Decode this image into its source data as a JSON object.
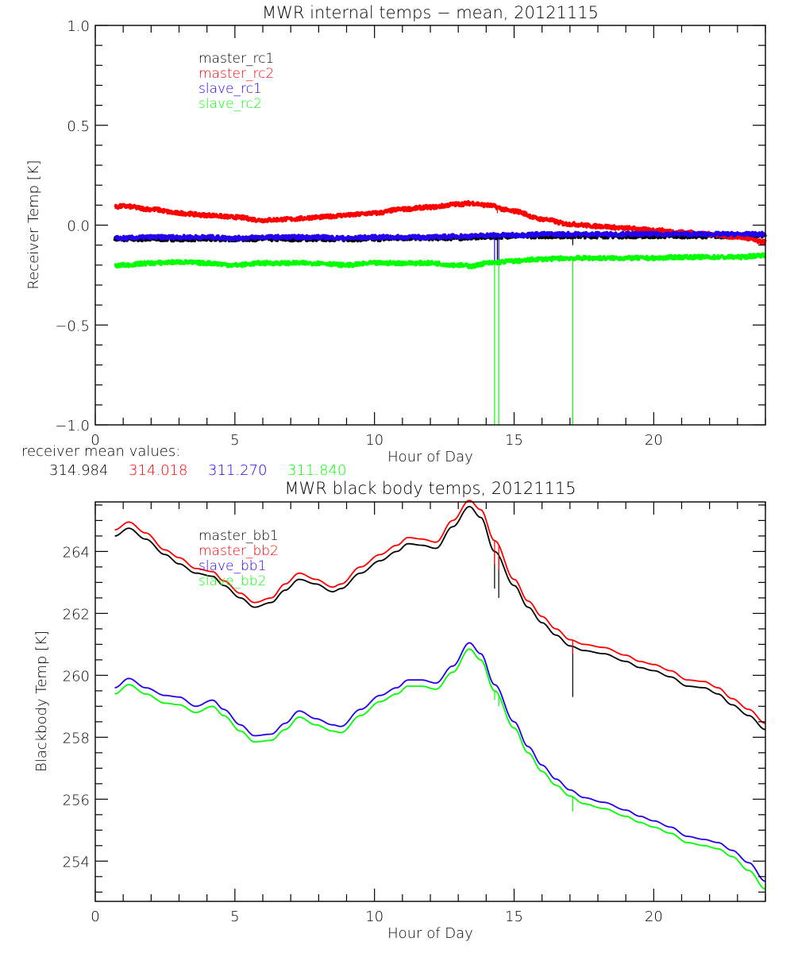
{
  "colors": {
    "black": "#000000",
    "red": "#ff0000",
    "blue": "#2200ee",
    "green": "#00ff00"
  },
  "receiver_mean": {
    "label": "receiver mean values:",
    "values": [
      {
        "text": "314.984",
        "color": "#000000"
      },
      {
        "text": "314.018",
        "color": "#ff0000"
      },
      {
        "text": "311.270",
        "color": "#2200ee"
      },
      {
        "text": "311.840",
        "color": "#00ff00"
      }
    ]
  },
  "chart_data": [
    {
      "type": "line",
      "title": "MWR internal temps − mean, 20121115",
      "xlabel": "Hour of Day",
      "ylabel": "Receiver Temp [K]",
      "xlim": [
        0,
        24
      ],
      "ylim": [
        -1.0,
        1.0
      ],
      "xticks": [
        0,
        5,
        10,
        15,
        20
      ],
      "xtick_labels": [
        "0",
        "5",
        "10",
        "15",
        "20"
      ],
      "yticks": [
        1.0,
        0.5,
        0.0,
        -0.5,
        -1.0
      ],
      "ytick_labels": [
        "1.0",
        "0.5",
        "0.0",
        "−0.5",
        "−1.0"
      ],
      "grid": false,
      "legend_position": "top-left",
      "x": [
        0.7,
        1,
        2,
        3,
        4,
        5,
        6,
        7,
        8,
        9,
        10,
        11,
        12,
        13,
        13.5,
        14,
        15,
        16,
        17,
        18,
        19,
        20,
        21,
        22,
        23,
        24
      ],
      "series": [
        {
          "name": "master_rc1",
          "color": "#000000",
          "values": [
            -0.07,
            -0.07,
            -0.07,
            -0.07,
            -0.07,
            -0.07,
            -0.07,
            -0.07,
            -0.07,
            -0.07,
            -0.07,
            -0.065,
            -0.065,
            -0.065,
            -0.06,
            -0.06,
            -0.055,
            -0.055,
            -0.055,
            -0.055,
            -0.055,
            -0.055,
            -0.055,
            -0.055,
            -0.055,
            -0.05
          ],
          "spikes": [
            {
              "x": 14.4,
              "to": -0.2
            },
            {
              "x": 17.1,
              "to": -0.1
            }
          ]
        },
        {
          "name": "master_rc2",
          "color": "#ff0000",
          "values": [
            0.09,
            0.095,
            0.08,
            0.06,
            0.05,
            0.04,
            0.025,
            0.03,
            0.04,
            0.05,
            0.06,
            0.08,
            0.09,
            0.105,
            0.11,
            0.1,
            0.07,
            0.03,
            0.005,
            -0.005,
            -0.015,
            -0.025,
            -0.035,
            -0.045,
            -0.06,
            -0.085
          ],
          "spikes": [
            {
              "x": 14.4,
              "to": 0.06
            }
          ]
        },
        {
          "name": "slave_rc1",
          "color": "#2200ee",
          "values": [
            -0.065,
            -0.065,
            -0.06,
            -0.06,
            -0.06,
            -0.065,
            -0.06,
            -0.06,
            -0.06,
            -0.065,
            -0.06,
            -0.06,
            -0.06,
            -0.055,
            -0.055,
            -0.05,
            -0.05,
            -0.045,
            -0.045,
            -0.045,
            -0.045,
            -0.045,
            -0.045,
            -0.045,
            -0.045,
            -0.045
          ],
          "spikes": [
            {
              "x": 14.3,
              "to": -0.2
            },
            {
              "x": 14.45,
              "to": -0.2
            }
          ]
        },
        {
          "name": "slave_rc2",
          "color": "#00ff00",
          "values": [
            -0.205,
            -0.2,
            -0.19,
            -0.185,
            -0.19,
            -0.2,
            -0.19,
            -0.19,
            -0.19,
            -0.2,
            -0.19,
            -0.19,
            -0.19,
            -0.2,
            -0.205,
            -0.19,
            -0.18,
            -0.17,
            -0.165,
            -0.165,
            -0.165,
            -0.165,
            -0.16,
            -0.16,
            -0.16,
            -0.15
          ],
          "spikes": [
            {
              "x": 14.3,
              "to": -1.0
            },
            {
              "x": 14.45,
              "to": -1.0
            },
            {
              "x": 17.1,
              "to": -1.0
            }
          ]
        }
      ]
    },
    {
      "type": "line",
      "title": "MWR black body temps, 20121115",
      "xlabel": "Hour of Day",
      "ylabel": "Blackbody Temp [K]",
      "xlim": [
        0,
        24
      ],
      "ylim": [
        252.7,
        265.6
      ],
      "xticks": [
        0,
        5,
        10,
        15,
        20
      ],
      "xtick_labels": [
        "0",
        "5",
        "10",
        "15",
        "20"
      ],
      "yticks": [
        264,
        262,
        260,
        258,
        256,
        254
      ],
      "ytick_labels": [
        "264",
        "262",
        "260",
        "258",
        "256",
        "254"
      ],
      "grid": false,
      "legend_position": "top-left",
      "x": [
        0.7,
        1.2,
        1.8,
        2.5,
        3.0,
        3.6,
        4.2,
        4.6,
        5.2,
        5.7,
        6.3,
        6.8,
        7.3,
        7.9,
        8.5,
        8.8,
        9.5,
        10.2,
        10.8,
        11.2,
        11.7,
        12.2,
        12.8,
        13.4,
        13.8,
        14.3,
        15.0,
        15.5,
        16.0,
        16.5,
        17.0,
        17.5,
        18.2,
        19.0,
        19.5,
        20.0,
        20.6,
        21.2,
        21.8,
        22.3,
        22.8,
        23.4,
        24.0
      ],
      "series": [
        {
          "name": "master_bb1",
          "color": "#000000",
          "values": [
            264.5,
            264.75,
            264.4,
            263.9,
            263.6,
            263.3,
            263.2,
            262.9,
            262.5,
            262.2,
            262.35,
            262.75,
            263.1,
            262.95,
            262.7,
            262.8,
            263.3,
            263.7,
            264.0,
            264.25,
            264.2,
            264.1,
            264.8,
            265.45,
            265.1,
            264.0,
            262.9,
            262.2,
            261.7,
            261.3,
            260.95,
            260.8,
            260.7,
            260.45,
            260.25,
            260.15,
            259.95,
            259.65,
            259.6,
            259.4,
            259.05,
            258.7,
            258.25
          ],
          "spikes": [
            {
              "x": 14.3,
              "to": 262.8
            },
            {
              "x": 14.45,
              "to": 262.5
            },
            {
              "x": 17.1,
              "to": 259.3
            }
          ]
        },
        {
          "name": "master_bb2",
          "color": "#ff0000",
          "values": [
            264.7,
            264.95,
            264.6,
            264.05,
            263.8,
            263.45,
            263.35,
            263.05,
            262.65,
            262.35,
            262.5,
            262.95,
            263.3,
            263.1,
            262.85,
            262.95,
            263.5,
            263.9,
            264.2,
            264.45,
            264.4,
            264.3,
            265.0,
            265.65,
            265.35,
            264.35,
            263.1,
            262.4,
            261.9,
            261.5,
            261.15,
            261.0,
            260.9,
            260.65,
            260.45,
            260.35,
            260.15,
            259.85,
            259.8,
            259.6,
            259.25,
            258.9,
            258.45
          ],
          "spikes": [
            {
              "x": 14.3,
              "to": 263.6
            },
            {
              "x": 14.45,
              "to": 263.4
            },
            {
              "x": 17.1,
              "to": 260.7
            }
          ]
        },
        {
          "name": "slave_bb1",
          "color": "#2200ee",
          "values": [
            259.6,
            259.9,
            259.6,
            259.35,
            259.3,
            259.0,
            259.2,
            258.9,
            258.4,
            258.05,
            258.1,
            258.45,
            258.85,
            258.6,
            258.4,
            258.35,
            258.9,
            259.35,
            259.6,
            259.85,
            259.85,
            259.75,
            260.3,
            261.05,
            260.7,
            259.7,
            258.5,
            257.7,
            257.1,
            256.65,
            256.3,
            256.05,
            255.9,
            255.65,
            255.45,
            255.3,
            255.1,
            254.8,
            254.7,
            254.6,
            254.35,
            253.95,
            253.35
          ],
          "spikes": []
        },
        {
          "name": "slave_bb2",
          "color": "#00ff00",
          "values": [
            259.4,
            259.7,
            259.4,
            259.1,
            259.05,
            258.8,
            259.0,
            258.7,
            258.2,
            257.85,
            257.9,
            258.25,
            258.65,
            258.4,
            258.2,
            258.15,
            258.7,
            259.15,
            259.4,
            259.65,
            259.65,
            259.55,
            260.1,
            260.85,
            260.5,
            259.5,
            258.3,
            257.5,
            256.9,
            256.45,
            256.1,
            255.85,
            255.7,
            255.45,
            255.25,
            255.1,
            254.9,
            254.6,
            254.5,
            254.4,
            254.15,
            253.7,
            253.1
          ],
          "spikes": [
            {
              "x": 14.3,
              "to": 259.2
            },
            {
              "x": 14.45,
              "to": 259.0
            },
            {
              "x": 17.1,
              "to": 255.6
            }
          ]
        }
      ]
    }
  ]
}
